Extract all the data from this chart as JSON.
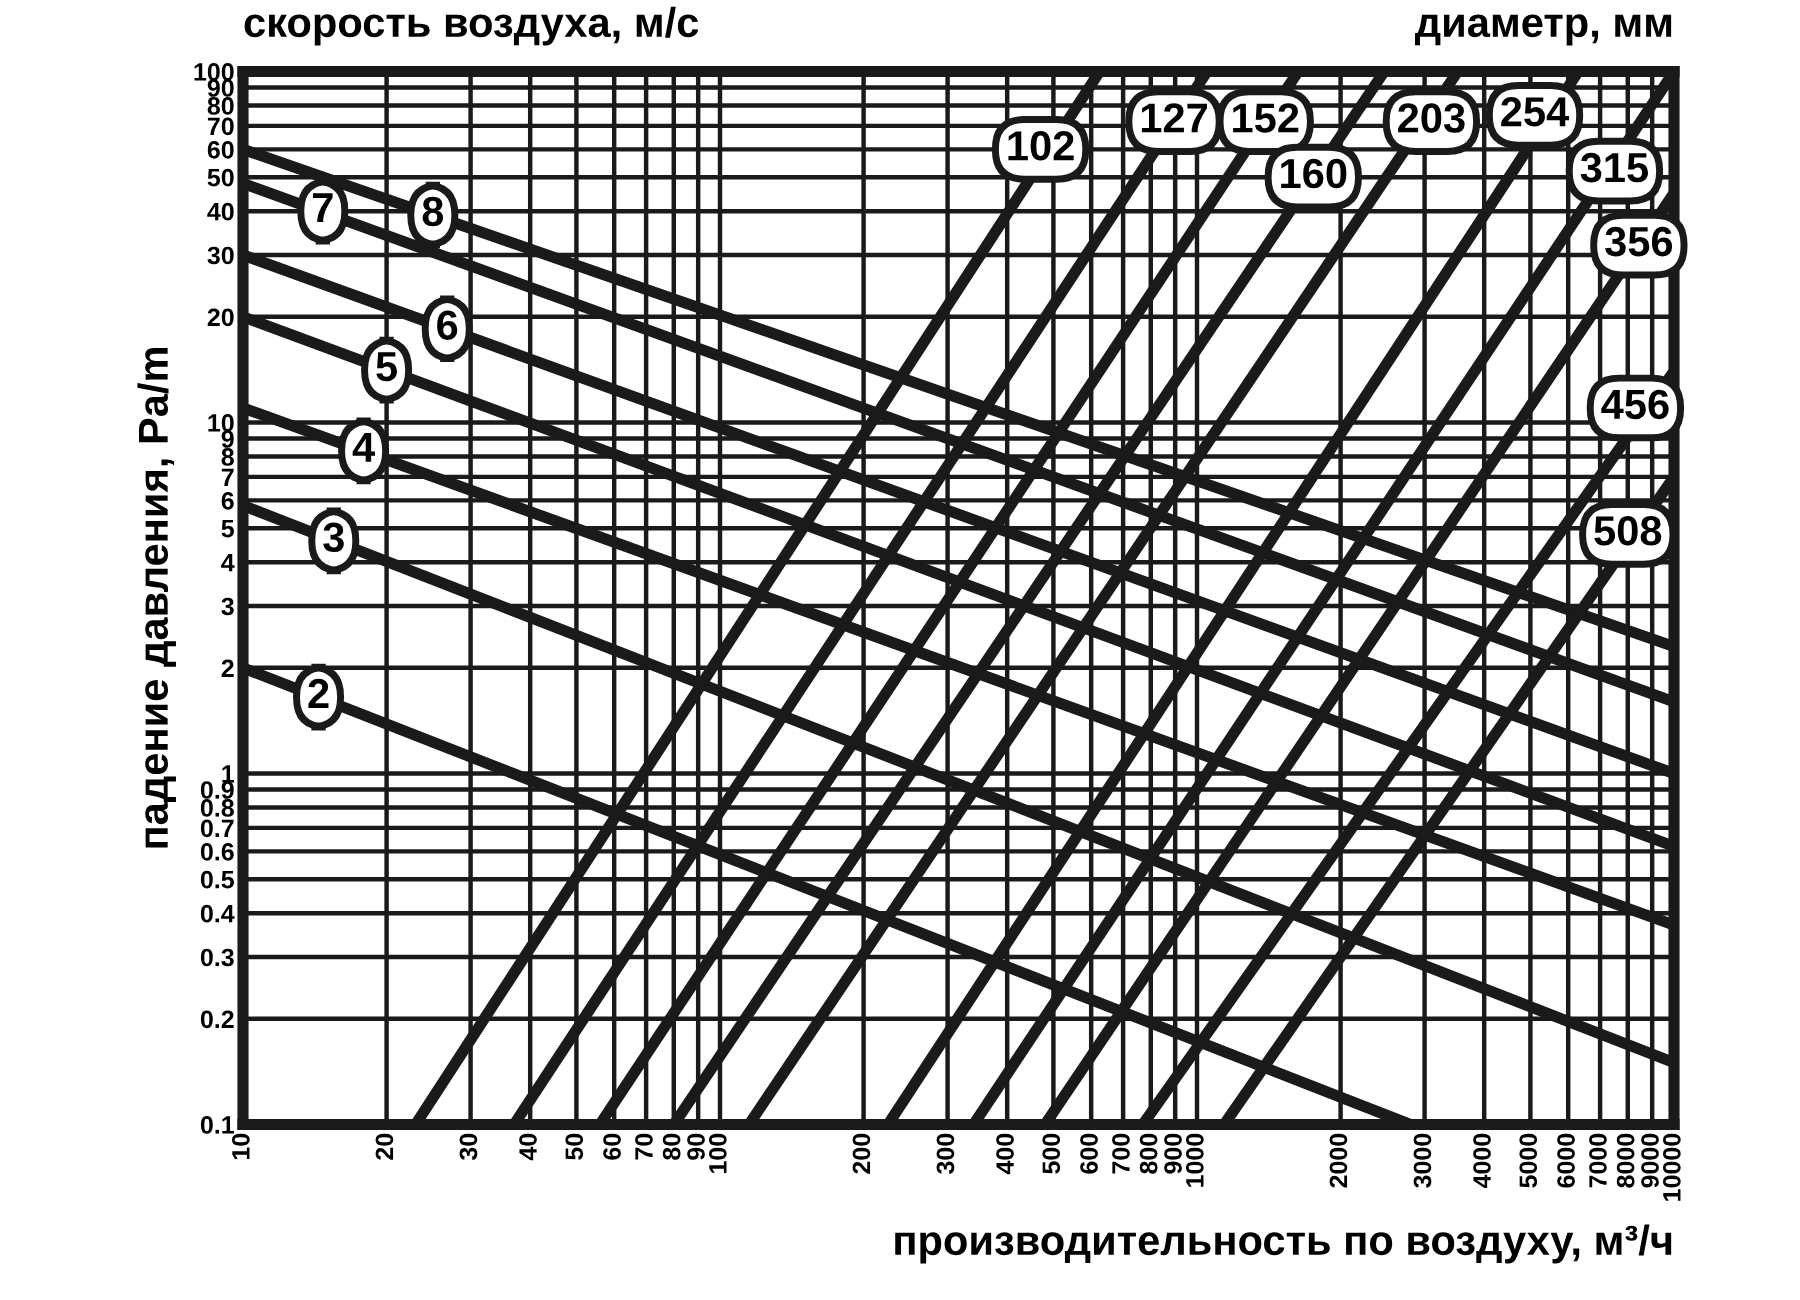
{
  "chart_data": {
    "type": "line",
    "title": "скорость воздуха, м/с",
    "xlabel": "производительность по воздуху, м³/ч",
    "ylabel": "падение давления, Pa/m",
    "log": "xy",
    "grid": true,
    "line_style": "solid",
    "marker": "none",
    "xlim": [
      10,
      10000
    ],
    "ylim": [
      0.1,
      100
    ],
    "xticks": [
      10,
      20,
      30,
      40,
      50,
      60,
      70,
      80,
      90,
      100,
      200,
      300,
      400,
      500,
      600,
      700,
      800,
      900,
      1000,
      2000,
      3000,
      4000,
      5000,
      6000,
      7000,
      8000,
      9000,
      10000
    ],
    "yticks": [
      0.1,
      0.2,
      0.3,
      0.4,
      0.5,
      0.6,
      0.7,
      0.8,
      0.9,
      1,
      2,
      3,
      4,
      5,
      6,
      7,
      8,
      9,
      10,
      20,
      30,
      40,
      50,
      60,
      70,
      80,
      90,
      100
    ],
    "series": [
      {
        "color": "#1a1a1a",
        "x": [
          10,
          10000
        ],
        "values": [
          60,
          2.3
        ]
      },
      {
        "color": "#1a1a1a",
        "x": [
          10,
          10000
        ],
        "values": [
          48,
          1.6
        ]
      },
      {
        "color": "#1a1a1a",
        "x": [
          10,
          10000
        ],
        "values": [
          30,
          1.0
        ]
      },
      {
        "color": "#1a1a1a",
        "x": [
          10,
          10000
        ],
        "values": [
          20,
          0.62
        ]
      },
      {
        "color": "#1a1a1a",
        "x": [
          10,
          10000
        ],
        "values": [
          11,
          0.37
        ]
      },
      {
        "color": "#1a1a1a",
        "x": [
          10,
          10000
        ],
        "values": [
          5.8,
          0.15
        ]
      },
      {
        "color": "#1a1a1a",
        "x": [
          10,
          2800
        ],
        "values": [
          2,
          0.1
        ]
      },
      {
        "color": "#1a1a1a",
        "x": [
          23,
          625
        ],
        "values": [
          0.1,
          100
        ]
      },
      {
        "color": "#1a1a1a",
        "x": [
          37,
          1050
        ],
        "values": [
          0.1,
          100
        ]
      },
      {
        "color": "#1a1a1a",
        "x": [
          56,
          1630
        ],
        "values": [
          0.1,
          100
        ]
      },
      {
        "color": "#1a1a1a",
        "x": [
          80,
          2470
        ],
        "values": [
          0.1,
          100
        ]
      },
      {
        "color": "#1a1a1a",
        "x": [
          115,
          3520
        ],
        "values": [
          0.1,
          100
        ]
      },
      {
        "color": "#1a1a1a",
        "x": [
          225,
          6300
        ],
        "values": [
          0.1,
          100
        ]
      },
      {
        "color": "#1a1a1a",
        "x": [
          340,
          10000
        ],
        "values": [
          0.1,
          100
        ]
      },
      {
        "color": "#1a1a1a",
        "x": [
          480,
          10000
        ],
        "values": [
          0.1,
          45
        ]
      },
      {
        "color": "#1a1a1a",
        "x": [
          770,
          10000
        ],
        "values": [
          0.1,
          14
        ]
      },
      {
        "color": "#1a1a1a",
        "x": [
          1140,
          10000
        ],
        "values": [
          0.1,
          7
        ]
      }
    ],
    "annotations": [
      "диаметр, мм",
      {
        "text": "8",
        "x": 25,
        "y": 39
      },
      {
        "text": "7",
        "x": 14.7,
        "y": 40
      },
      {
        "text": "6",
        "x": 26.8,
        "y": 18.5
      },
      {
        "text": "5",
        "x": 20,
        "y": 14.1
      },
      {
        "text": "4",
        "x": 17.9,
        "y": 8.3
      },
      {
        "text": "3",
        "x": 15.5,
        "y": 4.6
      },
      {
        "text": "2",
        "x": 14.4,
        "y": 1.65
      },
      {
        "text": "102",
        "x": 470,
        "y": 60
      },
      {
        "text": "127",
        "x": 895,
        "y": 72
      },
      {
        "text": "152",
        "x": 1390,
        "y": 72
      },
      {
        "text": "160",
        "x": 1753,
        "y": 50
      },
      {
        "text": "203",
        "x": 3100,
        "y": 72
      },
      {
        "text": "254",
        "x": 5100,
        "y": 75
      },
      {
        "text": "315",
        "x": 7500,
        "y": 52
      },
      {
        "text": "356",
        "x": 8440,
        "y": 32
      },
      {
        "text": "456",
        "x": 8300,
        "y": 11
      },
      {
        "text": "508",
        "x": 8000,
        "y": 4.8
      }
    ]
  }
}
